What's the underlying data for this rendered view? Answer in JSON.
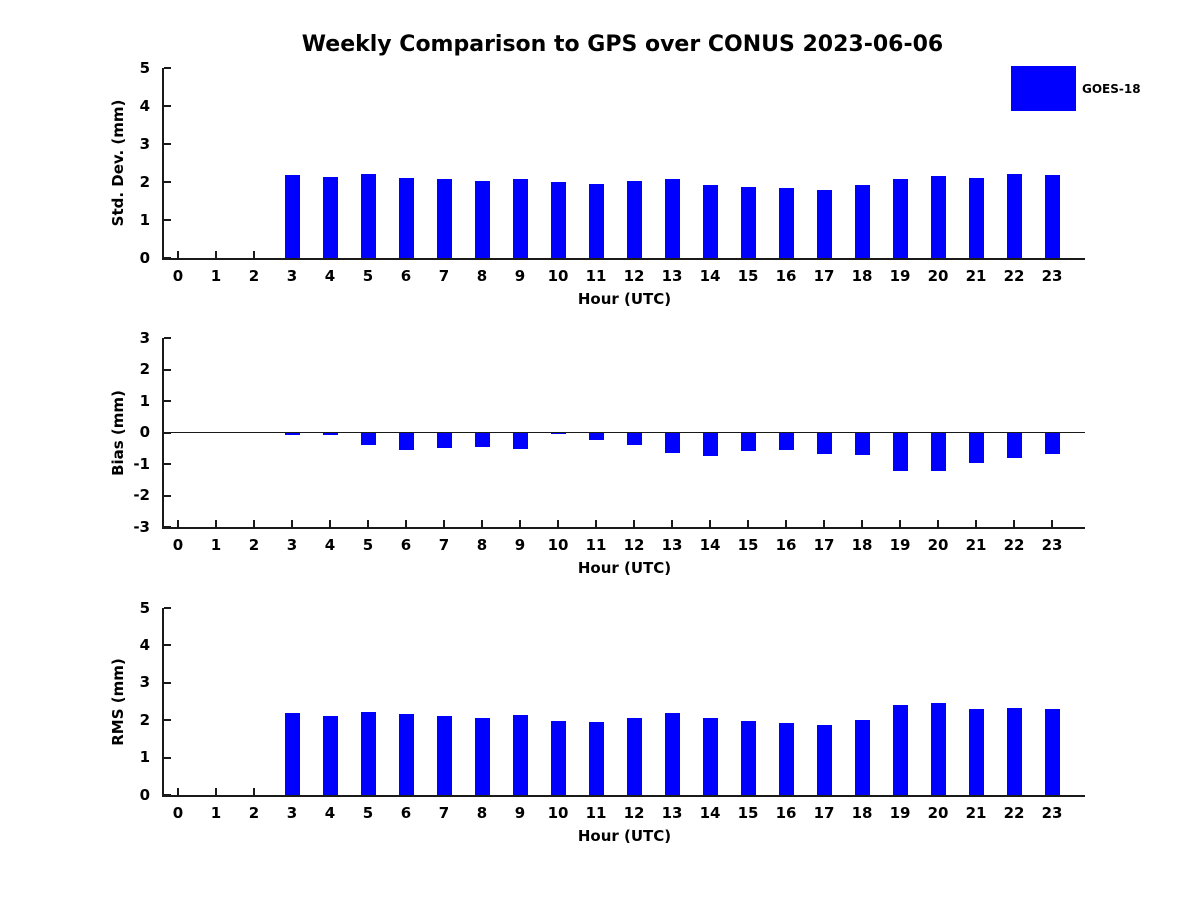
{
  "title": "Weekly Comparison to GPS over CONUS 2023-06-06",
  "legend": {
    "label": "GOES-18",
    "color": "#0000FF",
    "position": "top-right"
  },
  "colors": {
    "bar": "#0000FF",
    "axis": "#1a1a1a",
    "text": "#000000",
    "background": "#ffffff"
  },
  "chart_data": [
    {
      "type": "bar",
      "ylabel": "Std. Dev. (mm)",
      "xlabel": "Hour (UTC)",
      "ylim": [
        0,
        5
      ],
      "yticks": [
        0,
        1,
        2,
        3,
        4,
        5
      ],
      "grid": false,
      "categories": [
        "0",
        "1",
        "2",
        "3",
        "4",
        "5",
        "6",
        "7",
        "8",
        "9",
        "10",
        "11",
        "12",
        "13",
        "14",
        "15",
        "16",
        "17",
        "18",
        "19",
        "20",
        "21",
        "22",
        "23"
      ],
      "series": [
        {
          "name": "GOES-18",
          "values": [
            0,
            0,
            0,
            2.19,
            2.13,
            2.22,
            2.1,
            2.07,
            2.02,
            2.07,
            1.99,
            1.95,
            2.02,
            2.07,
            1.92,
            1.87,
            1.83,
            1.78,
            1.93,
            2.07,
            2.16,
            2.11,
            2.21,
            2.18
          ]
        }
      ]
    },
    {
      "type": "bar",
      "ylabel": "Bias (mm)",
      "xlabel": "Hour (UTC)",
      "ylim": [
        -3,
        3
      ],
      "yticks": [
        -3,
        -2,
        -1,
        0,
        1,
        2,
        3
      ],
      "grid": false,
      "zero_line": true,
      "categories": [
        "0",
        "1",
        "2",
        "3",
        "4",
        "5",
        "6",
        "7",
        "8",
        "9",
        "10",
        "11",
        "12",
        "13",
        "14",
        "15",
        "16",
        "17",
        "18",
        "19",
        "20",
        "21",
        "22",
        "23"
      ],
      "series": [
        {
          "name": "GOES-18",
          "values": [
            0,
            0,
            0,
            -0.09,
            -0.08,
            -0.41,
            -0.56,
            -0.5,
            -0.45,
            -0.52,
            -0.04,
            -0.24,
            -0.4,
            -0.66,
            -0.75,
            -0.58,
            -0.56,
            -0.67,
            -0.7,
            -1.22,
            -1.23,
            -0.97,
            -0.8,
            -0.68
          ]
        }
      ]
    },
    {
      "type": "bar",
      "ylabel": "RMS (mm)",
      "xlabel": "Hour (UTC)",
      "ylim": [
        0,
        5
      ],
      "yticks": [
        0,
        1,
        2,
        3,
        4,
        5
      ],
      "grid": false,
      "categories": [
        "0",
        "1",
        "2",
        "3",
        "4",
        "5",
        "6",
        "7",
        "8",
        "9",
        "10",
        "11",
        "12",
        "13",
        "14",
        "15",
        "16",
        "17",
        "18",
        "19",
        "20",
        "21",
        "22",
        "23"
      ],
      "series": [
        {
          "name": "GOES-18",
          "values": [
            0,
            0,
            0,
            2.18,
            2.1,
            2.23,
            2.17,
            2.1,
            2.05,
            2.13,
            1.98,
            1.94,
            2.05,
            2.18,
            2.05,
            1.97,
            1.93,
            1.87,
            2.01,
            2.4,
            2.45,
            2.3,
            2.32,
            2.3
          ]
        }
      ]
    }
  ]
}
